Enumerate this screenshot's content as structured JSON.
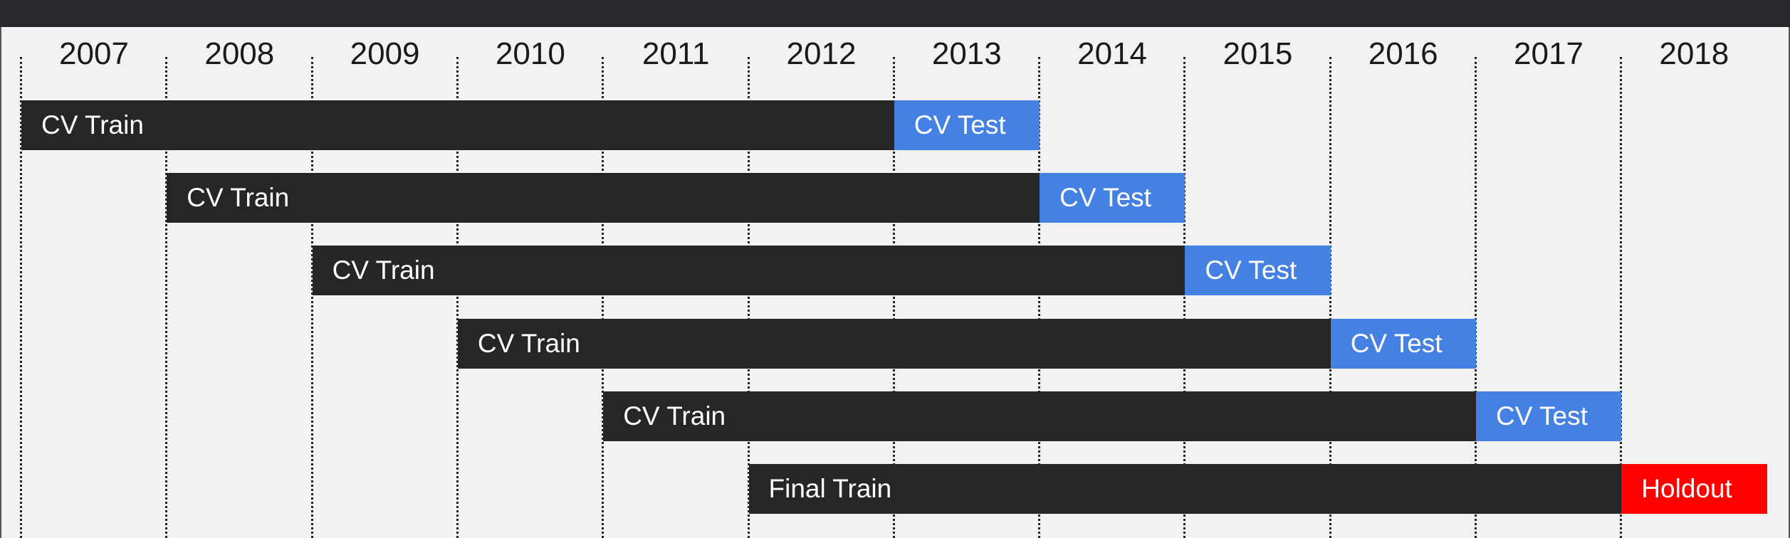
{
  "years": [
    "2007",
    "2008",
    "2009",
    "2010",
    "2011",
    "2012",
    "2013",
    "2014",
    "2015",
    "2016",
    "2017",
    "2018"
  ],
  "rows": [
    {
      "segments": [
        {
          "label": "CV Train",
          "kind": "train",
          "start": "2007",
          "end": "2012"
        },
        {
          "label": "CV Test",
          "kind": "test",
          "start": "2013",
          "end": "2013"
        }
      ]
    },
    {
      "segments": [
        {
          "label": "CV Train",
          "kind": "train",
          "start": "2008",
          "end": "2013"
        },
        {
          "label": "CV Test",
          "kind": "test",
          "start": "2014",
          "end": "2014"
        }
      ]
    },
    {
      "segments": [
        {
          "label": "CV Train",
          "kind": "train",
          "start": "2009",
          "end": "2014"
        },
        {
          "label": "CV Test",
          "kind": "test",
          "start": "2015",
          "end": "2015"
        }
      ]
    },
    {
      "segments": [
        {
          "label": "CV Train",
          "kind": "train",
          "start": "2010",
          "end": "2015"
        },
        {
          "label": "CV Test",
          "kind": "test",
          "start": "2016",
          "end": "2016"
        }
      ]
    },
    {
      "segments": [
        {
          "label": "CV Train",
          "kind": "train",
          "start": "2011",
          "end": "2016"
        },
        {
          "label": "CV Test",
          "kind": "test",
          "start": "2017",
          "end": "2017"
        }
      ]
    },
    {
      "segments": [
        {
          "label": "Final Train",
          "kind": "train",
          "start": "2012",
          "end": "2017"
        },
        {
          "label": "Holdout",
          "kind": "holdout",
          "start": "2018",
          "end": "2018"
        }
      ]
    }
  ],
  "colors": {
    "train": "#262626",
    "test": "#4580e3",
    "holdout": "#ff0000",
    "background": "#f2f2f2",
    "top_bar": "#27292c"
  }
}
